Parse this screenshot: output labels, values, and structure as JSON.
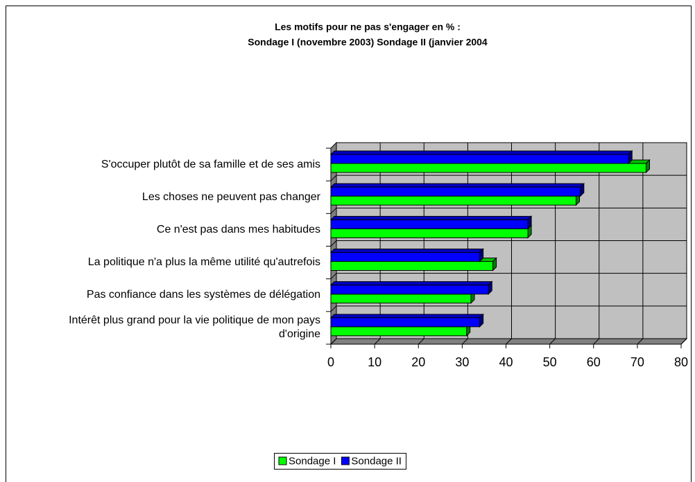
{
  "chart_data": {
    "type": "bar",
    "orientation": "horizontal",
    "three_d": true,
    "title": "Les motifs pour ne pas s'engager en % :",
    "subtitle": "Sondage I (novembre 2003) Sondage II (janvier 2004",
    "categories": [
      "S'occuper plutôt de sa famille et de ses amis",
      "Les choses ne peuvent pas changer",
      "Ce n'est pas dans mes habitudes",
      "La politique n'a plus la même utilité qu'autrefois",
      "Pas confiance dans les systèmes de délégation",
      "Intérêt plus grand pour la vie politique de mon pays d'origine"
    ],
    "series": [
      {
        "name": "Sondage I",
        "color": "#00ff00",
        "values": [
          72,
          56,
          45,
          37,
          32,
          31
        ]
      },
      {
        "name": "Sondage II",
        "color": "#0000ff",
        "values": [
          68,
          57,
          45,
          34,
          36,
          34
        ]
      }
    ],
    "xlim": [
      0,
      80
    ],
    "xticks": [
      0,
      10,
      20,
      30,
      40,
      50,
      60,
      70,
      80
    ],
    "grid": true,
    "legend": "bottom"
  }
}
